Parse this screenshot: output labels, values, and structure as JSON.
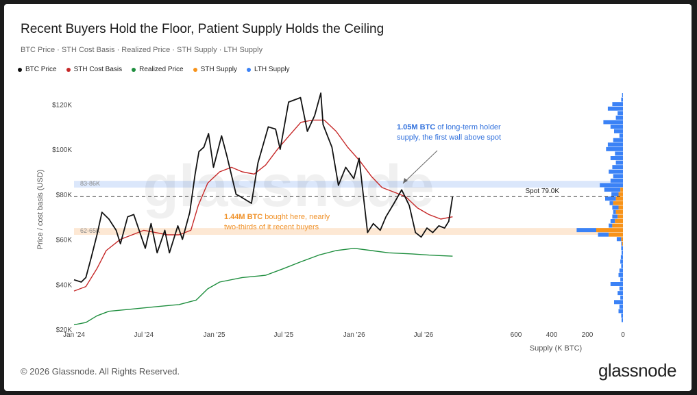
{
  "title": "Recent Buyers Hold the Floor, Patient Supply Holds the Ceiling",
  "subtitle": "BTC Price · STH Cost Basis · Realized Price · STH Supply · LTH Supply",
  "footer": "© 2026 Glassnode. All Rights Reserved.",
  "brand": "glassnode",
  "watermark": "glassnode",
  "legend": [
    {
      "label": "BTC Price",
      "color": "#111111"
    },
    {
      "label": "STH Cost Basis",
      "color": "#c62828"
    },
    {
      "label": "Realized Price",
      "color": "#1e8e3e"
    },
    {
      "label": "STH Supply",
      "color": "#f7931a"
    },
    {
      "label": "LTH Supply",
      "color": "#3b82f6"
    }
  ],
  "chart_data": [
    {
      "type": "line",
      "ylabel": "Price / cost basis (USD)",
      "xlabel": "",
      "ylim": [
        20000,
        125000
      ],
      "x_range": [
        "2024-01-01",
        "2026-10-20"
      ],
      "y_ticks": [
        {
          "value": 20000,
          "label": "$20K"
        },
        {
          "value": 40000,
          "label": "$40K"
        },
        {
          "value": 60000,
          "label": "$60K"
        },
        {
          "value": 80000,
          "label": "$80K"
        },
        {
          "value": 100000,
          "label": "$100K"
        },
        {
          "value": 120000,
          "label": "$120K"
        }
      ],
      "x_ticks": [
        {
          "value": "2024-01-01",
          "label": "Jan '24"
        },
        {
          "value": "2024-07-01",
          "label": "Jul '24"
        },
        {
          "value": "2025-01-01",
          "label": "Jan '25"
        },
        {
          "value": "2025-07-01",
          "label": "Jul '25"
        },
        {
          "value": "2026-01-01",
          "label": "Jan '26"
        },
        {
          "value": "2026-07-01",
          "label": "Jul '26"
        }
      ],
      "bands": [
        {
          "label": "83-86K",
          "from": 83000,
          "to": 86000,
          "color": "#dbe7fb"
        },
        {
          "label": "62-65K",
          "from": 62000,
          "to": 65000,
          "color": "#fde8d4"
        }
      ],
      "reference_line": {
        "label": "Spot 79.0K",
        "value": 79000
      },
      "annotations": [
        {
          "bold": "1.05M BTC",
          "text": " of long-term holder",
          "line2": "supply, the first wall above spot",
          "color": "#2f6fdc"
        },
        {
          "bold": "1.44M BTC",
          "text": " bought here, nearly",
          "line2": "two-thirds of it recent buyers",
          "color": "#f0922a"
        }
      ],
      "series": [
        {
          "name": "BTC Price",
          "color": "#111111",
          "points": [
            [
              "2024-01-01",
              42000
            ],
            [
              "2024-01-20",
              41000
            ],
            [
              "2024-02-01",
              43000
            ],
            [
              "2024-02-15",
              52000
            ],
            [
              "2024-03-01",
              62000
            ],
            [
              "2024-03-14",
              72000
            ],
            [
              "2024-04-01",
              69000
            ],
            [
              "2024-04-20",
              64000
            ],
            [
              "2024-05-01",
              58000
            ],
            [
              "2024-05-20",
              70000
            ],
            [
              "2024-06-05",
              71000
            ],
            [
              "2024-06-25",
              61000
            ],
            [
              "2024-07-05",
              56000
            ],
            [
              "2024-07-20",
              67000
            ],
            [
              "2024-08-05",
              54000
            ],
            [
              "2024-08-25",
              64000
            ],
            [
              "2024-09-06",
              54000
            ],
            [
              "2024-09-28",
              66000
            ],
            [
              "2024-10-10",
              60000
            ],
            [
              "2024-10-29",
              72000
            ],
            [
              "2024-11-12",
              89000
            ],
            [
              "2024-11-22",
              99000
            ],
            [
              "2024-12-05",
              101000
            ],
            [
              "2024-12-17",
              107000
            ],
            [
              "2024-12-30",
              92000
            ],
            [
              "2025-01-20",
              106000
            ],
            [
              "2025-02-03",
              97000
            ],
            [
              "2025-02-27",
              80000
            ],
            [
              "2025-03-10",
              79000
            ],
            [
              "2025-04-08",
              76000
            ],
            [
              "2025-04-25",
              94000
            ],
            [
              "2025-05-22",
              110000
            ],
            [
              "2025-06-10",
              109000
            ],
            [
              "2025-06-22",
              100000
            ],
            [
              "2025-07-14",
              121000
            ],
            [
              "2025-08-14",
              123000
            ],
            [
              "2025-09-01",
              108000
            ],
            [
              "2025-09-20",
              115000
            ],
            [
              "2025-10-06",
              125000
            ],
            [
              "2025-10-12",
              111000
            ],
            [
              "2025-11-04",
              101000
            ],
            [
              "2025-11-21",
              84000
            ],
            [
              "2025-12-10",
              92000
            ],
            [
              "2025-12-31",
              87000
            ],
            [
              "2026-01-14",
              96000
            ],
            [
              "2026-02-05",
              63000
            ],
            [
              "2026-02-20",
              67000
            ],
            [
              "2026-03-10",
              64000
            ],
            [
              "2026-03-25",
              70000
            ],
            [
              "2026-04-15",
              76000
            ],
            [
              "2026-05-05",
              82000
            ],
            [
              "2026-05-25",
              75000
            ],
            [
              "2026-06-10",
              63000
            ],
            [
              "2026-06-25",
              61000
            ],
            [
              "2026-07-10",
              65000
            ],
            [
              "2026-07-25",
              63000
            ],
            [
              "2026-08-10",
              66000
            ],
            [
              "2026-08-25",
              65000
            ],
            [
              "2026-09-05",
              68000
            ],
            [
              "2026-09-15",
              79000
            ]
          ]
        },
        {
          "name": "STH Cost Basis",
          "color": "#c62828",
          "points": [
            [
              "2024-01-01",
              37000
            ],
            [
              "2024-02-01",
              39000
            ],
            [
              "2024-03-01",
              47000
            ],
            [
              "2024-03-25",
              55000
            ],
            [
              "2024-05-01",
              60000
            ],
            [
              "2024-06-01",
              62000
            ],
            [
              "2024-07-01",
              64000
            ],
            [
              "2024-08-01",
              63000
            ],
            [
              "2024-09-01",
              62000
            ],
            [
              "2024-10-01",
              62000
            ],
            [
              "2024-11-01",
              64000
            ],
            [
              "2024-11-20",
              75000
            ],
            [
              "2024-12-15",
              85000
            ],
            [
              "2025-01-15",
              90000
            ],
            [
              "2025-02-15",
              92000
            ],
            [
              "2025-03-15",
              90000
            ],
            [
              "2025-04-15",
              89000
            ],
            [
              "2025-05-15",
              93000
            ],
            [
              "2025-06-15",
              100000
            ],
            [
              "2025-07-15",
              106000
            ],
            [
              "2025-08-15",
              112000
            ],
            [
              "2025-09-15",
              113000
            ],
            [
              "2025-10-15",
              113000
            ],
            [
              "2025-11-15",
              108000
            ],
            [
              "2025-12-15",
              101000
            ],
            [
              "2026-01-15",
              95000
            ],
            [
              "2026-02-15",
              88000
            ],
            [
              "2026-03-15",
              83000
            ],
            [
              "2026-04-15",
              81000
            ],
            [
              "2026-05-15",
              79000
            ],
            [
              "2026-06-15",
              74000
            ],
            [
              "2026-07-15",
              71000
            ],
            [
              "2026-08-15",
              69000
            ],
            [
              "2026-09-15",
              70000
            ]
          ]
        },
        {
          "name": "Realized Price",
          "color": "#1e8e3e",
          "points": [
            [
              "2024-01-01",
              22000
            ],
            [
              "2024-02-01",
              23000
            ],
            [
              "2024-03-01",
              26000
            ],
            [
              "2024-04-01",
              28000
            ],
            [
              "2024-06-01",
              29000
            ],
            [
              "2024-08-01",
              30000
            ],
            [
              "2024-10-01",
              31000
            ],
            [
              "2024-11-15",
              33000
            ],
            [
              "2024-12-15",
              38000
            ],
            [
              "2025-01-15",
              41000
            ],
            [
              "2025-03-15",
              43000
            ],
            [
              "2025-05-15",
              44000
            ],
            [
              "2025-07-01",
              47000
            ],
            [
              "2025-08-15",
              50000
            ],
            [
              "2025-10-01",
              53000
            ],
            [
              "2025-11-15",
              55000
            ],
            [
              "2026-01-01",
              56000
            ],
            [
              "2026-02-15",
              55000
            ],
            [
              "2026-04-01",
              54000
            ],
            [
              "2026-06-01",
              53500
            ],
            [
              "2026-07-15",
              53000
            ],
            [
              "2026-09-15",
              52500
            ]
          ]
        }
      ]
    },
    {
      "type": "bar",
      "orientation": "horizontal",
      "xlabel": "Supply (K BTC)",
      "ylabel": "",
      "xlim": [
        650,
        0
      ],
      "x_ticks": [
        {
          "value": 600,
          "label": "600"
        },
        {
          "value": 400,
          "label": "400"
        },
        {
          "value": 200,
          "label": "200"
        },
        {
          "value": 0,
          "label": "0"
        }
      ],
      "series": [
        {
          "name": "LTH Supply",
          "color": "#3b82f6"
        },
        {
          "name": "STH Supply",
          "color": "#f7931a"
        }
      ],
      "bins": [
        {
          "price": 124000,
          "lth": 5,
          "sth": 0
        },
        {
          "price": 122000,
          "lth": 10,
          "sth": 0
        },
        {
          "price": 120000,
          "lth": 60,
          "sth": 0
        },
        {
          "price": 118000,
          "lth": 85,
          "sth": 0
        },
        {
          "price": 116000,
          "lth": 30,
          "sth": 0
        },
        {
          "price": 114000,
          "lth": 40,
          "sth": 0
        },
        {
          "price": 112000,
          "lth": 110,
          "sth": 0
        },
        {
          "price": 110000,
          "lth": 70,
          "sth": 0
        },
        {
          "price": 108000,
          "lth": 50,
          "sth": 0
        },
        {
          "price": 106000,
          "lth": 20,
          "sth": 0
        },
        {
          "price": 104000,
          "lth": 55,
          "sth": 0
        },
        {
          "price": 102000,
          "lth": 85,
          "sth": 0
        },
        {
          "price": 100000,
          "lth": 95,
          "sth": 0
        },
        {
          "price": 98000,
          "lth": 45,
          "sth": 0
        },
        {
          "price": 96000,
          "lth": 70,
          "sth": 0
        },
        {
          "price": 94000,
          "lth": 40,
          "sth": 0
        },
        {
          "price": 92000,
          "lth": 60,
          "sth": 0
        },
        {
          "price": 90000,
          "lth": 80,
          "sth": 0
        },
        {
          "price": 88000,
          "lth": 55,
          "sth": 0
        },
        {
          "price": 86000,
          "lth": 70,
          "sth": 0
        },
        {
          "price": 84000,
          "lth": 130,
          "sth": 0
        },
        {
          "price": 82000,
          "lth": 90,
          "sth": 15
        },
        {
          "price": 80000,
          "lth": 40,
          "sth": 25
        },
        {
          "price": 78000,
          "lth": 60,
          "sth": 40
        },
        {
          "price": 76000,
          "lth": 20,
          "sth": 55
        },
        {
          "price": 74000,
          "lth": 35,
          "sth": 25
        },
        {
          "price": 72000,
          "lth": 15,
          "sth": 40
        },
        {
          "price": 70000,
          "lth": 30,
          "sth": 30
        },
        {
          "price": 68000,
          "lth": 25,
          "sth": 45
        },
        {
          "price": 66000,
          "lth": 20,
          "sth": 60
        },
        {
          "price": 64000,
          "lth": 110,
          "sth": 150
        },
        {
          "price": 62000,
          "lth": 60,
          "sth": 80
        },
        {
          "price": 60000,
          "lth": 25,
          "sth": 10
        },
        {
          "price": 58000,
          "lth": 5,
          "sth": 5
        },
        {
          "price": 56000,
          "lth": 10,
          "sth": 0
        },
        {
          "price": 54000,
          "lth": 8,
          "sth": 0
        },
        {
          "price": 52000,
          "lth": 12,
          "sth": 0
        },
        {
          "price": 50000,
          "lth": 15,
          "sth": 0
        },
        {
          "price": 48000,
          "lth": 10,
          "sth": 0
        },
        {
          "price": 46000,
          "lth": 20,
          "sth": 0
        },
        {
          "price": 44000,
          "lth": 25,
          "sth": 0
        },
        {
          "price": 42000,
          "lth": 15,
          "sth": 0
        },
        {
          "price": 40000,
          "lth": 70,
          "sth": 0
        },
        {
          "price": 38000,
          "lth": 20,
          "sth": 0
        },
        {
          "price": 36000,
          "lth": 30,
          "sth": 0
        },
        {
          "price": 34000,
          "lth": 15,
          "sth": 0
        },
        {
          "price": 32000,
          "lth": 50,
          "sth": 0
        },
        {
          "price": 30000,
          "lth": 20,
          "sth": 0
        },
        {
          "price": 28000,
          "lth": 25,
          "sth": 0
        },
        {
          "price": 26000,
          "lth": 10,
          "sth": 0
        },
        {
          "price": 24000,
          "lth": 8,
          "sth": 0
        }
      ]
    }
  ]
}
